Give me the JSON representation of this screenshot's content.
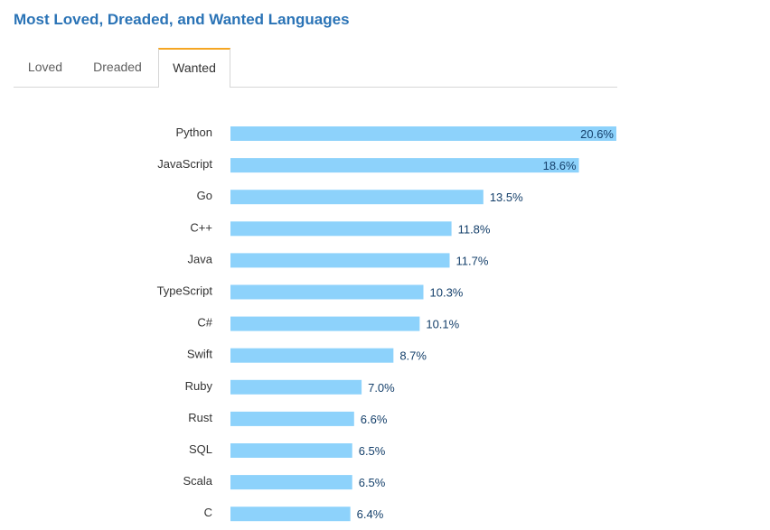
{
  "header": {
    "title": "Most Loved, Dreaded, and Wanted Languages"
  },
  "tabs": [
    {
      "label": "Loved",
      "active": false
    },
    {
      "label": "Dreaded",
      "active": false
    },
    {
      "label": "Wanted",
      "active": true
    }
  ],
  "colors": {
    "title": "#2a73b6",
    "bar": "#8dd2fb",
    "value_text": "#15406b",
    "active_tab_accent": "#f5a623"
  },
  "chart_data": {
    "type": "bar",
    "orientation": "horizontal",
    "categories": [
      "Python",
      "JavaScript",
      "Go",
      "C++",
      "Java",
      "TypeScript",
      "C#",
      "Swift",
      "Ruby",
      "Rust",
      "SQL",
      "Scala",
      "C"
    ],
    "values": [
      20.6,
      18.6,
      13.5,
      11.8,
      11.7,
      10.3,
      10.1,
      8.7,
      7.0,
      6.6,
      6.5,
      6.5,
      6.4
    ],
    "value_labels": [
      "20.6%",
      "18.6%",
      "13.5%",
      "11.8%",
      "11.7%",
      "10.3%",
      "10.1%",
      "8.7%",
      "7.0%",
      "6.6%",
      "6.5%",
      "6.5%",
      "6.4%"
    ],
    "title": "",
    "xlabel": "",
    "ylabel": "",
    "xlim": [
      0,
      20.6
    ],
    "grid": false,
    "legend": "none"
  }
}
